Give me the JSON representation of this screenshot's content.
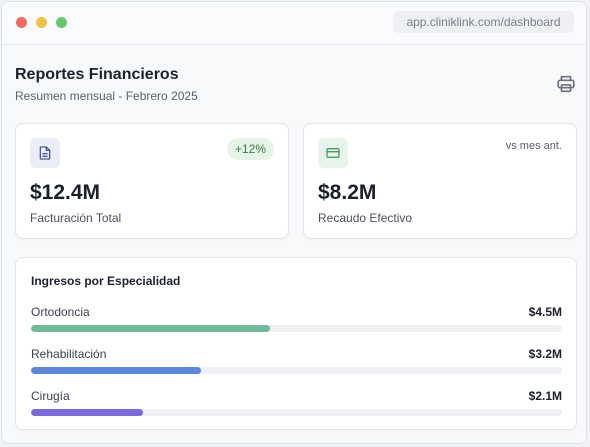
{
  "browser": {
    "url": "app.cliniklink.com/dashboard"
  },
  "header": {
    "title": "Reportes Financieros",
    "subtitle": "Resumen mensual - Febrero 2025",
    "print_icon": "printer-icon"
  },
  "kpis": [
    {
      "icon": "document-icon",
      "value": "$12.4M",
      "label": "Facturación Total",
      "badge": "+12%",
      "accent": "#4f56a8"
    },
    {
      "icon": "credit-card-icon",
      "value": "$8.2M",
      "label": "Recaudo Efectivo",
      "note": "vs mes ant.",
      "accent": "#4a9a62"
    }
  ],
  "specialties": {
    "title": "Ingresos por Especialidad",
    "items": [
      {
        "name": "Ortodoncia",
        "value": "$4.5M",
        "progress_pct": 45,
        "color": "#6dbb9a"
      },
      {
        "name": "Rehabilitación",
        "value": "$3.2M",
        "progress_pct": 32,
        "color": "#5a86dc"
      },
      {
        "name": "Cirugía",
        "value": "$2.1M",
        "progress_pct": 21,
        "color": "#7b68dc"
      }
    ]
  }
}
